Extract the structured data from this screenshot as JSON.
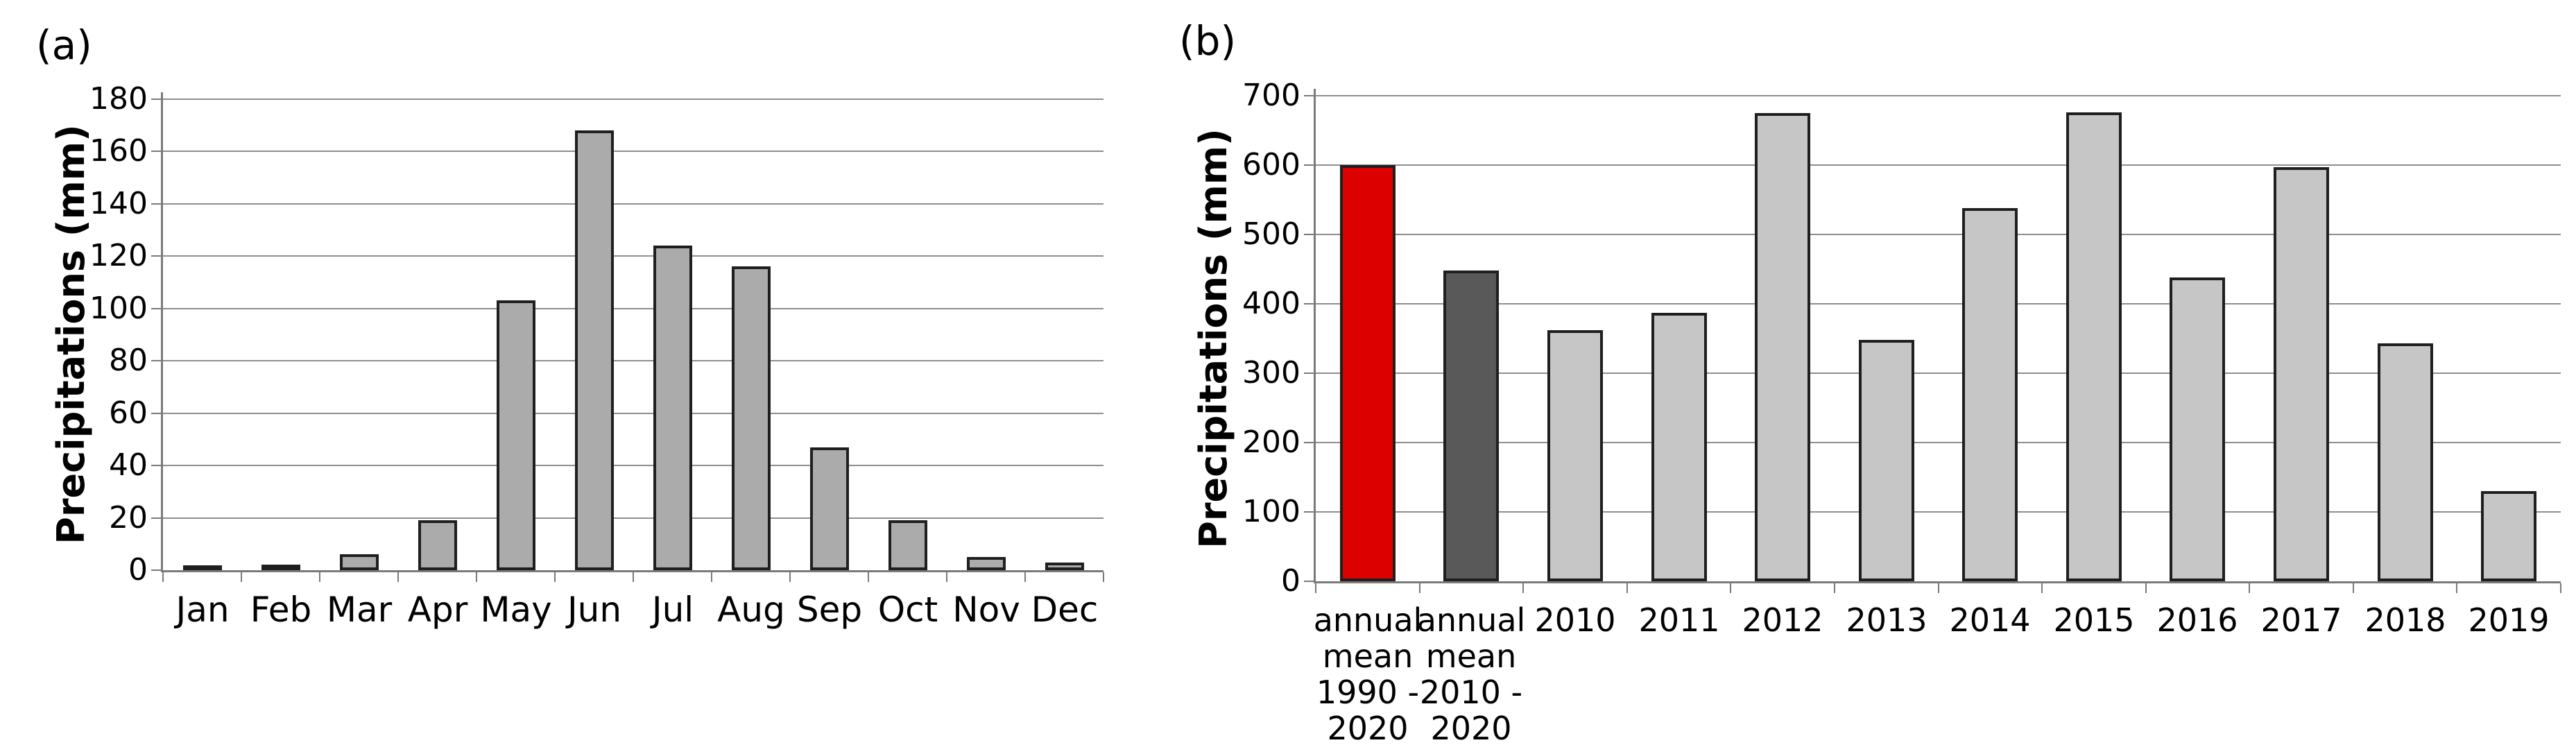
{
  "figure": {
    "panels": [
      {
        "id": "a",
        "label": "(a)"
      },
      {
        "id": "b",
        "label": "(b)"
      }
    ]
  },
  "colors": {
    "monthly_bar_fill": "#ABABAB",
    "year_bar_fill": "#C6C6C6",
    "mean_1990_2020_fill": "#DD0000",
    "mean_2010_2020_fill": "#595959",
    "bar_outline": "#1F1F1F",
    "gridline": "#8E8E8E",
    "axis": "#7A7A7A"
  },
  "chart_data": [
    {
      "id": "a",
      "type": "bar",
      "title": "",
      "xlabel": "",
      "ylabel": "Precipitations (mm)",
      "categories": [
        "Jan",
        "Feb",
        "Mar",
        "Apr",
        "May",
        "Jun",
        "Jul",
        "Aug",
        "Sep",
        "Oct",
        "Nov",
        "Dec"
      ],
      "values": [
        1,
        2,
        6,
        19,
        103,
        168,
        124,
        116,
        47,
        19,
        5,
        3
      ],
      "ylim": [
        0,
        180
      ],
      "ytick_step": 20,
      "yticks": [
        0,
        20,
        40,
        60,
        80,
        100,
        120,
        140,
        160,
        180
      ],
      "grid": true,
      "legend": "none",
      "bar_fill": "#ABABAB",
      "bar_border": "#1F1F1F"
    },
    {
      "id": "b",
      "type": "bar",
      "title": "",
      "xlabel": "",
      "ylabel": "Precipitations (mm)",
      "categories": [
        "annual\nmean\n1990 -\n2020",
        "annual\nmean\n2010 -\n2020",
        "2010",
        "2011",
        "2012",
        "2013",
        "2014",
        "2015",
        "2016",
        "2017",
        "2018",
        "2019"
      ],
      "values": [
        600,
        448,
        362,
        387,
        675,
        348,
        538,
        676,
        438,
        597,
        343,
        130
      ],
      "ylim": [
        0,
        700
      ],
      "ytick_step": 100,
      "yticks": [
        0,
        100,
        200,
        300,
        400,
        500,
        600,
        700
      ],
      "grid": true,
      "legend": "none",
      "bar_fill": "#C6C6C6",
      "bar_border": "#1F1F1F",
      "bar_colors": [
        "#DD0000",
        "#595959",
        "#C6C6C6",
        "#C6C6C6",
        "#C6C6C6",
        "#C6C6C6",
        "#C6C6C6",
        "#C6C6C6",
        "#C6C6C6",
        "#C6C6C6",
        "#C6C6C6",
        "#C6C6C6"
      ]
    }
  ]
}
